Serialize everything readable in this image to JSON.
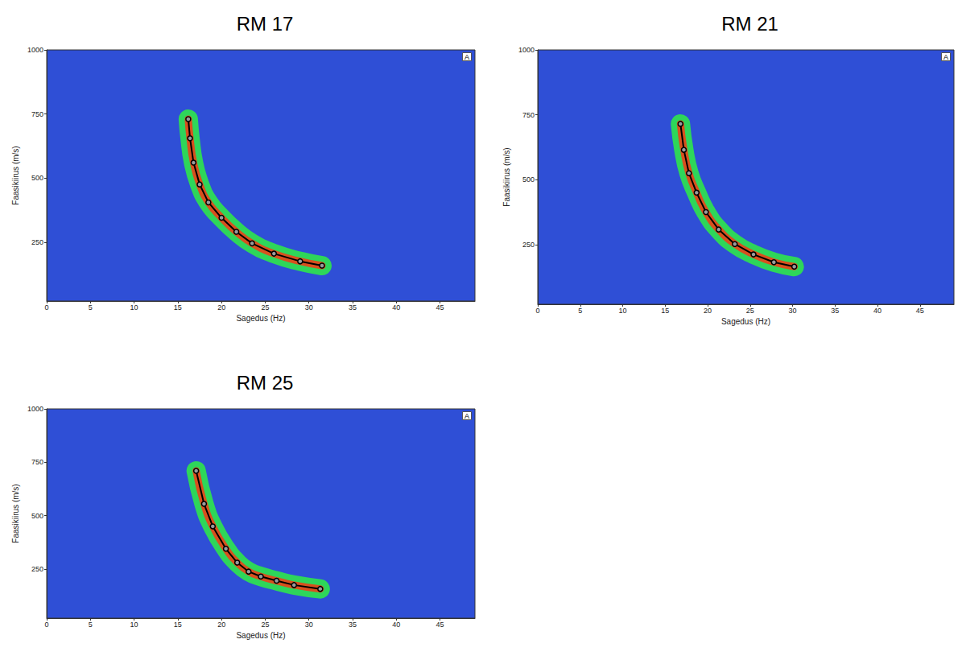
{
  "chart_data": [
    {
      "type": "line",
      "title": "RM 17",
      "x_label": "Sagedus (Hz)",
      "y_label": "Faasikiirus (m/s)",
      "panel_label": "A",
      "x": [
        16.2,
        16.4,
        16.8,
        17.5,
        18.5,
        20.0,
        21.7,
        23.5,
        26.0,
        29.0,
        31.5
      ],
      "values": [
        730,
        655,
        560,
        475,
        405,
        345,
        290,
        245,
        205,
        175,
        158
      ],
      "xlim": [
        0,
        49
      ],
      "xticks": [
        0,
        5,
        10,
        15,
        20,
        25,
        30,
        35,
        40,
        45
      ],
      "ylim": [
        20,
        1000
      ],
      "yticks": [
        250,
        500,
        750,
        1000
      ],
      "color": "#000000",
      "marker": "circle",
      "grid": false
    },
    {
      "type": "line",
      "title": "RM 21",
      "x_label": "Sagedus (Hz)",
      "y_label": "Faasikiirus (m/s)",
      "panel_label": "A",
      "x": [
        16.8,
        17.2,
        17.8,
        18.7,
        19.8,
        21.3,
        23.2,
        25.4,
        27.8,
        30.2
      ],
      "values": [
        715,
        615,
        525,
        450,
        375,
        308,
        252,
        212,
        182,
        165
      ],
      "xlim": [
        0,
        49
      ],
      "xticks": [
        0,
        5,
        10,
        15,
        20,
        25,
        30,
        35,
        40,
        45
      ],
      "ylim": [
        20,
        1000
      ],
      "yticks": [
        250,
        500,
        750,
        1000
      ],
      "color": "#000000",
      "marker": "circle",
      "grid": false
    },
    {
      "type": "line",
      "title": "RM 25",
      "x_label": "Sagedus (Hz)",
      "y_label": "Faasikiirus (m/s)",
      "panel_label": "A",
      "x": [
        17.1,
        18.0,
        19.0,
        20.5,
        21.8,
        23.1,
        24.5,
        26.3,
        28.3,
        31.3
      ],
      "values": [
        710,
        555,
        450,
        345,
        280,
        238,
        215,
        195,
        175,
        157
      ],
      "xlim": [
        0,
        49
      ],
      "xticks": [
        0,
        5,
        10,
        15,
        20,
        25,
        30,
        35,
        40,
        45
      ],
      "ylim": [
        20,
        1000
      ],
      "yticks": [
        250,
        500,
        750,
        1000
      ],
      "color": "#000000",
      "marker": "circle",
      "grid": false
    }
  ]
}
